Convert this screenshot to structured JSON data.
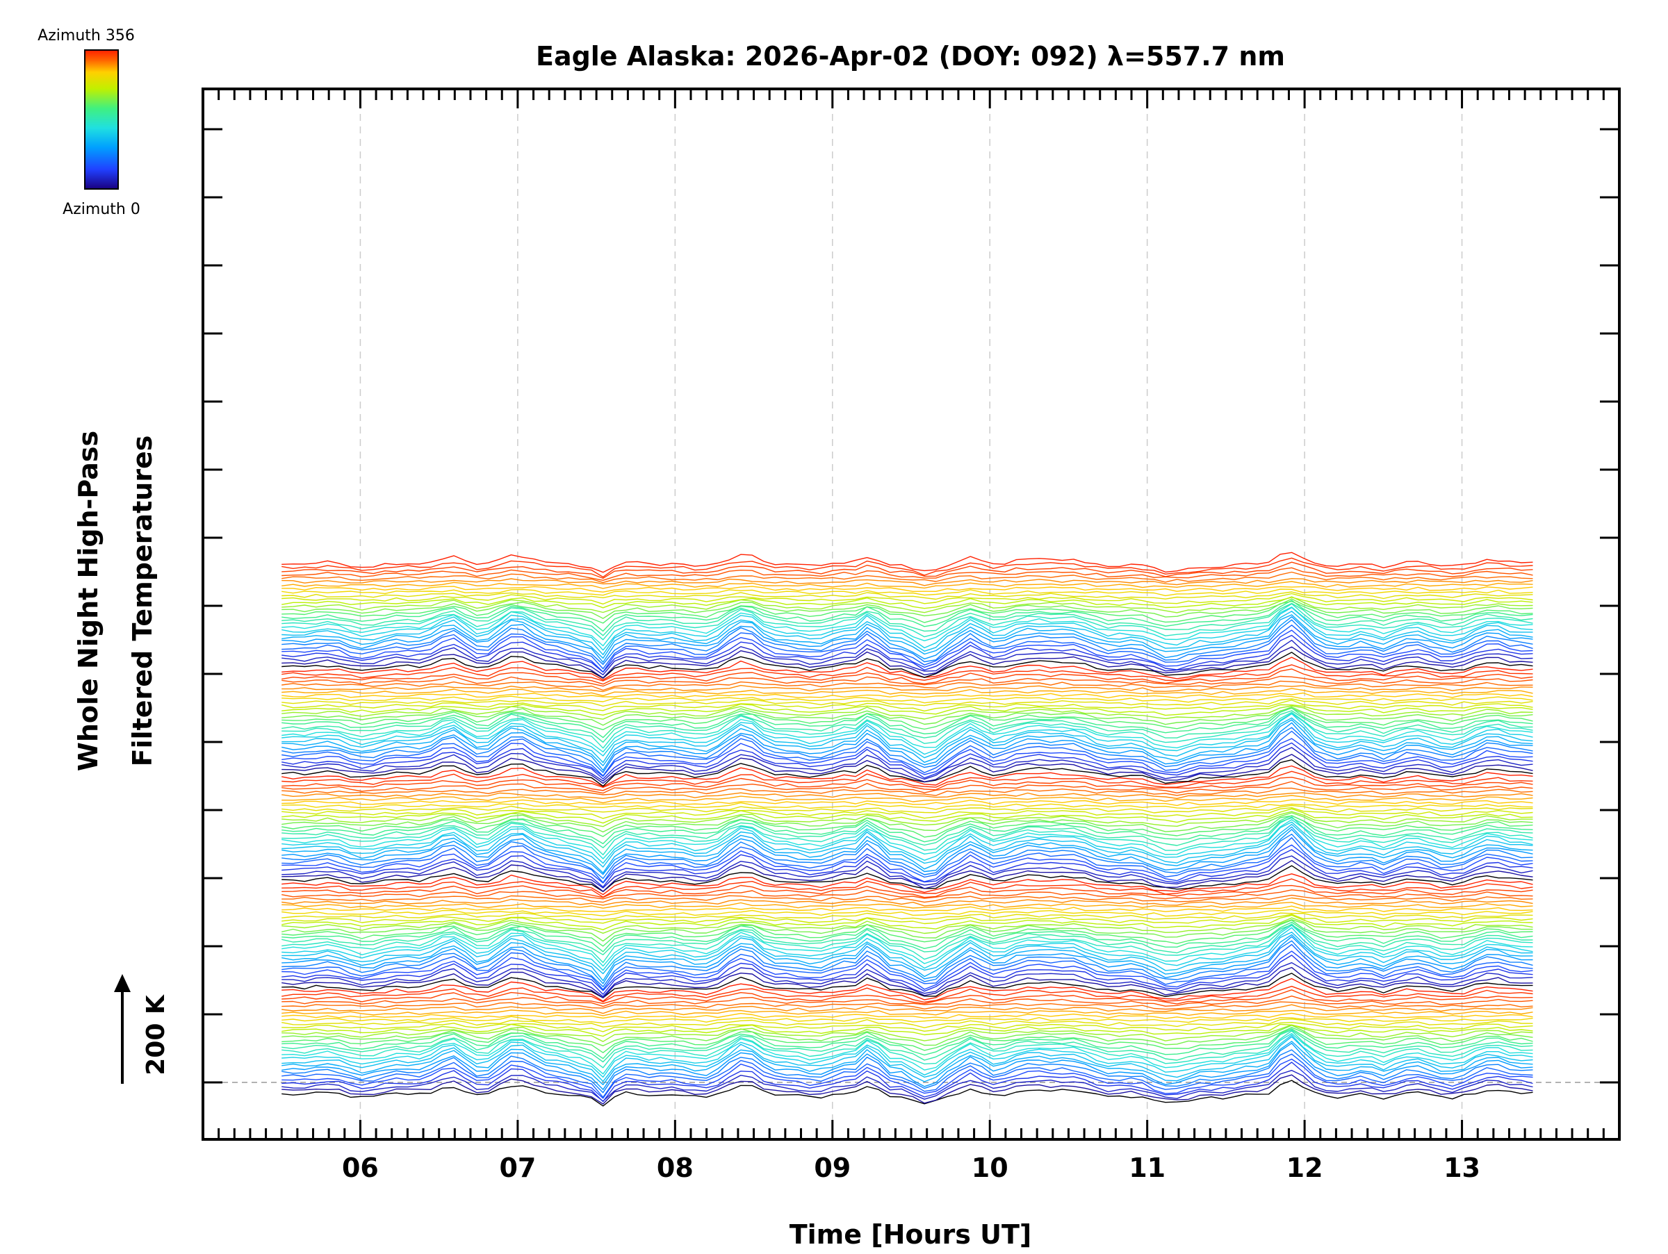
{
  "chart_data": {
    "type": "line",
    "title": "Eagle Alaska: 2026-Apr-02 (DOY: 092) λ=557.7 nm",
    "xlabel": "Time [Hours UT]",
    "ylabel_line1": "Whole Night High-Pass",
    "ylabel_line2": "Filtered Temperatures",
    "xlim": [
      5.0,
      14.0
    ],
    "x_ticks": [
      6,
      7,
      8,
      9,
      10,
      11,
      12,
      13
    ],
    "x_tick_labels": [
      "06",
      "07",
      "08",
      "09",
      "10",
      "11",
      "12",
      "13"
    ],
    "x_start": 5.5,
    "x_end": 13.45,
    "n_samples": 110,
    "n_traces": 150,
    "trace_offset_k": 14,
    "y_ticks_count": 15,
    "scale_bar_label": "200 K",
    "scale_bar_k": 200,
    "colorbar": {
      "top_label": "Azimuth  356",
      "bottom_label": "Azimuth  0",
      "min": 0,
      "max": 356
    },
    "colormap": [
      "#1a0080",
      "#2040ff",
      "#00a0ff",
      "#20e0e0",
      "#40f080",
      "#c0f000",
      "#ffd000",
      "#ff6000",
      "#ff2000"
    ],
    "features": [
      {
        "t": 6.6,
        "amp": 55,
        "w": 0.12
      },
      {
        "t": 7.0,
        "amp": 60,
        "w": 0.14
      },
      {
        "t": 7.55,
        "amp": -70,
        "w": 0.06
      },
      {
        "t": 8.45,
        "amp": 55,
        "w": 0.12
      },
      {
        "t": 9.25,
        "amp": 80,
        "w": 0.05
      },
      {
        "t": 9.6,
        "amp": -50,
        "w": 0.12
      },
      {
        "t": 9.9,
        "amp": 35,
        "w": 0.06
      },
      {
        "t": 10.3,
        "amp": 45,
        "w": 0.2
      },
      {
        "t": 11.2,
        "amp": -65,
        "w": 0.18
      },
      {
        "t": 11.9,
        "amp": 90,
        "w": 0.1
      },
      {
        "t": 12.5,
        "amp": -25,
        "w": 0.08
      },
      {
        "t": 13.2,
        "amp": 30,
        "w": 0.12
      }
    ]
  }
}
